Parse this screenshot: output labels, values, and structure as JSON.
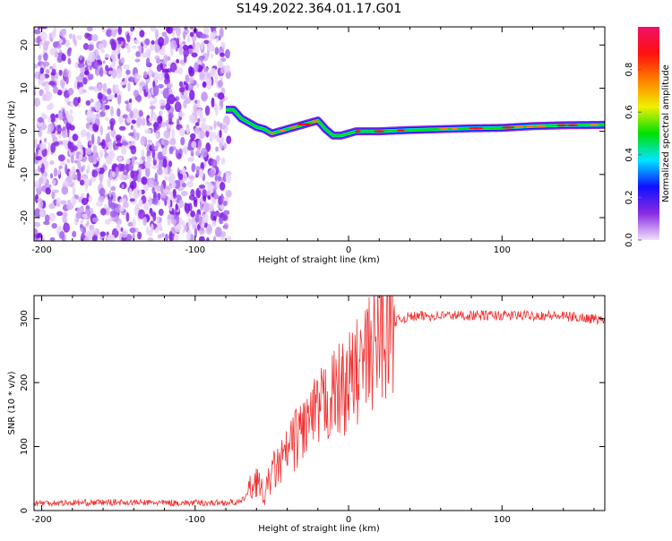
{
  "title": "S149.2022.364.01.17.G01",
  "chart_data": [
    {
      "type": "heatmap",
      "xlabel": "Height of straight line (km)",
      "ylabel": "Frequency (Hz)",
      "xlim": [
        -205,
        167
      ],
      "ylim": [
        -25.4,
        24.2
      ],
      "xticks": [
        -200,
        -100,
        0,
        100
      ],
      "yticks": [
        20,
        10,
        0,
        -10,
        -20
      ],
      "noise_region_x": [
        -205,
        -78
      ],
      "ridge": {
        "x": [
          -80,
          -75,
          -70,
          -65,
          -60,
          -55,
          -50,
          -45,
          -40,
          -35,
          -30,
          -25,
          -20,
          -15,
          -10,
          -5,
          0,
          5,
          10,
          20,
          40,
          60,
          80,
          100,
          110,
          120,
          140,
          167
        ],
        "freq": [
          5,
          5,
          3,
          2,
          1,
          0.5,
          -0.5,
          0,
          0.5,
          1,
          1.5,
          2,
          2.5,
          0.5,
          -1,
          -1,
          -0.5,
          0,
          0,
          0,
          0.3,
          0.5,
          0.7,
          0.8,
          1,
          1.2,
          1.4,
          1.5
        ]
      },
      "colorbar": {
        "label": "Normalized spectral amplitude",
        "ticks": [
          "0.0",
          "0.2",
          "0.4",
          "0.6",
          "0.8"
        ],
        "range": [
          0,
          1
        ],
        "colors": [
          "#f0e0fa",
          "#8a2be2",
          "#1010ff",
          "#00e5ff",
          "#00e000",
          "#f0f000",
          "#ff8000",
          "#ff1010",
          "#f0106a"
        ]
      }
    },
    {
      "type": "line",
      "xlabel": "Height of straight line (km)",
      "ylabel": "SNR (10 * v/v)",
      "xlim": [
        -205,
        167
      ],
      "ylim": [
        0,
        336
      ],
      "xticks": [
        -200,
        -100,
        0,
        100
      ],
      "yticks": [
        0,
        100,
        200,
        300
      ],
      "color": "#f03030",
      "x": [
        -205,
        -180,
        -150,
        -120,
        -90,
        -70,
        -65,
        -60,
        -55,
        -50,
        -45,
        -40,
        -35,
        -30,
        -25,
        -20,
        -15,
        -10,
        -5,
        0,
        5,
        10,
        15,
        20,
        25,
        30,
        35,
        40,
        60,
        80,
        100,
        130,
        150,
        167
      ],
      "snr": [
        12,
        12,
        13,
        12,
        12,
        13,
        30,
        50,
        20,
        60,
        70,
        90,
        110,
        130,
        140,
        150,
        170,
        180,
        190,
        200,
        215,
        230,
        250,
        270,
        285,
        295,
        300,
        303,
        305,
        305,
        305,
        305,
        302,
        298
      ]
    }
  ]
}
